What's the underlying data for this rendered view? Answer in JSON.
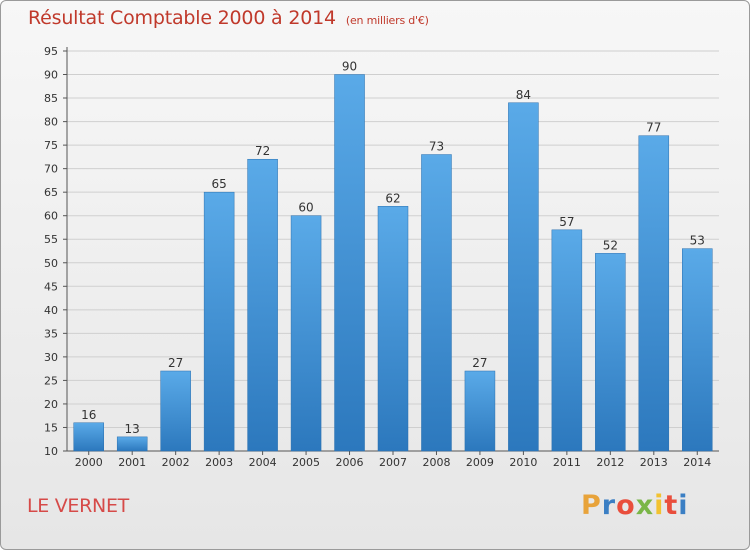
{
  "header": {
    "title": "Résultat Comptable 2000 à 2014",
    "subtitle": "(en milliers d'€)"
  },
  "footer": {
    "place": "LE VERNET",
    "logo_letters": [
      {
        "ch": "P",
        "color": "#e8a33a"
      },
      {
        "ch": "r",
        "color": "#3b7fc4"
      },
      {
        "ch": "o",
        "color": "#e94e3c"
      },
      {
        "ch": "x",
        "color": "#7ab648"
      },
      {
        "ch": "i",
        "color": "#f2c230"
      },
      {
        "ch": "t",
        "color": "#e94e3c"
      },
      {
        "ch": "i",
        "color": "#3b7fc4"
      }
    ]
  },
  "chart_data": {
    "type": "bar",
    "title": "Résultat Comptable 2000 à 2014",
    "subtitle": "(en milliers d'€)",
    "categories": [
      "2000",
      "2001",
      "2002",
      "2003",
      "2004",
      "2005",
      "2006",
      "2007",
      "2008",
      "2009",
      "2010",
      "2011",
      "2012",
      "2013",
      "2014"
    ],
    "values": [
      16,
      13,
      27,
      65,
      72,
      60,
      90,
      62,
      73,
      27,
      84,
      57,
      52,
      77,
      53
    ],
    "ylim": [
      10,
      95
    ],
    "yticks": [
      10,
      15,
      20,
      25,
      30,
      35,
      40,
      45,
      50,
      55,
      60,
      65,
      70,
      75,
      80,
      85,
      90,
      95
    ],
    "grid": true,
    "bar_color": "#3c8fd6"
  }
}
